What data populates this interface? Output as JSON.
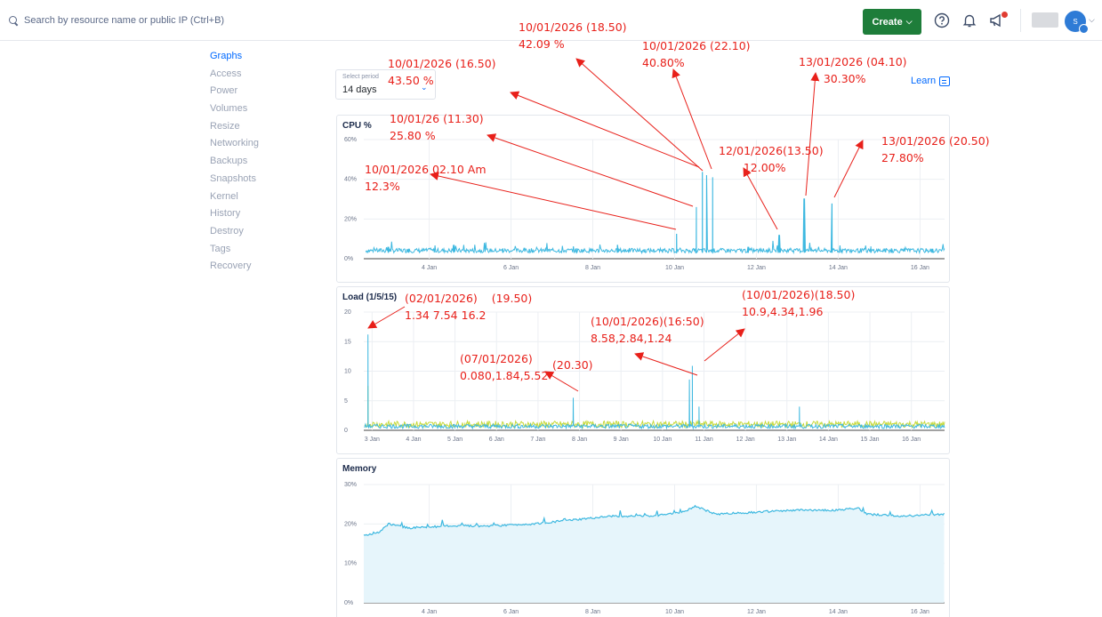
{
  "topbar": {
    "search_placeholder": "Search by resource name or public IP (Ctrl+B)",
    "create_label": "Create",
    "avatar_initial": "S"
  },
  "sidebar": {
    "items": [
      {
        "label": "Graphs",
        "active": true
      },
      {
        "label": "Access"
      },
      {
        "label": "Power"
      },
      {
        "label": "Volumes"
      },
      {
        "label": "Resize"
      },
      {
        "label": "Networking"
      },
      {
        "label": "Backups"
      },
      {
        "label": "Snapshots"
      },
      {
        "label": "Kernel"
      },
      {
        "label": "History"
      },
      {
        "label": "Destroy"
      },
      {
        "label": "Tags"
      },
      {
        "label": "Recovery"
      }
    ]
  },
  "period": {
    "label": "Select period",
    "value": "14 days"
  },
  "learn": {
    "label": "Learn"
  },
  "colors": {
    "accent": "#0069ff",
    "create": "#1e7d3a",
    "cpu_line": "#3db8e0",
    "load1": "#3db8e0",
    "load5": "#c6d93a",
    "mem_fill": "#e6f5fb",
    "annotation": "#e8201a"
  },
  "chart_data": [
    {
      "type": "line",
      "title": "CPU %",
      "y_ticks": [
        "0%",
        "20%",
        "40%",
        "60%"
      ],
      "ylim": [
        0,
        60
      ],
      "x_ticks": [
        "4 Jan",
        "6 Jan",
        "8 Jan",
        "10 Jan",
        "12 Jan",
        "14 Jan",
        "16 Jan"
      ],
      "x_range_days": [
        2.4,
        16.6
      ],
      "baseline": 3,
      "points": [
        [
          3.0,
          6
        ],
        [
          3.5,
          5
        ],
        [
          4.6,
          7
        ],
        [
          5.8,
          5
        ],
        [
          7.6,
          5
        ],
        [
          8.6,
          7
        ],
        [
          9.2,
          4
        ],
        [
          10.05,
          12.3
        ],
        [
          10.53,
          25.8
        ],
        [
          10.68,
          43.5
        ],
        [
          10.78,
          42.09
        ],
        [
          10.93,
          40.8
        ],
        [
          11.5,
          4
        ],
        [
          11.8,
          6
        ],
        [
          12.56,
          12.0
        ],
        [
          13.17,
          30.3
        ],
        [
          13.85,
          27.8
        ],
        [
          14.8,
          6
        ],
        [
          15.3,
          5
        ],
        [
          16.3,
          5
        ]
      ],
      "grid": true
    },
    {
      "type": "line",
      "title": "Load (1/5/15)",
      "y_ticks": [
        "0",
        "5",
        "10",
        "15",
        "20"
      ],
      "ylim": [
        0,
        20
      ],
      "x_ticks": [
        "3 Jan",
        "4 Jan",
        "5 Jan",
        "6 Jan",
        "7 Jan",
        "8 Jan",
        "9 Jan",
        "10 Jan",
        "11 Jan",
        "12 Jan",
        "13 Jan",
        "14 Jan",
        "15 Jan",
        "16 Jan"
      ],
      "x_range_days": [
        2.8,
        16.8
      ],
      "series": [
        {
          "values_baseline": 0.8,
          "spikes": [
            [
              2.9,
              16.2
            ],
            [
              7.85,
              5.5
            ],
            [
              10.65,
              8.58
            ],
            [
              10.72,
              10.9
            ],
            [
              10.88,
              4
            ],
            [
              13.3,
              4
            ]
          ]
        },
        {
          "values_baseline": 1.2,
          "spikes": [
            [
              2.9,
              7.5
            ],
            [
              7.85,
              1.84
            ]
          ]
        }
      ],
      "grid": true
    },
    {
      "type": "area",
      "title": "Memory",
      "y_ticks": [
        "0%",
        "10%",
        "20%",
        "30%"
      ],
      "ylim": [
        0,
        30
      ],
      "x_ticks": [
        "4 Jan",
        "6 Jan",
        "8 Jan",
        "10 Jan",
        "12 Jan",
        "14 Jan",
        "16 Jan"
      ],
      "x_range_days": [
        2.4,
        16.6
      ],
      "points": [
        [
          2.4,
          17
        ],
        [
          2.8,
          18
        ],
        [
          3.0,
          20
        ],
        [
          3.5,
          19
        ],
        [
          4.5,
          19.5
        ],
        [
          5.5,
          19.5
        ],
        [
          6.5,
          20
        ],
        [
          7.5,
          21
        ],
        [
          8.5,
          22
        ],
        [
          9.5,
          22
        ],
        [
          10.2,
          23
        ],
        [
          10.5,
          24.5
        ],
        [
          11.0,
          22.5
        ],
        [
          12.0,
          23
        ],
        [
          13.0,
          23.5
        ],
        [
          14.0,
          23.5
        ],
        [
          14.5,
          24
        ],
        [
          14.7,
          22.5
        ],
        [
          15.5,
          22
        ],
        [
          16.6,
          22.5
        ]
      ],
      "grid": true
    }
  ],
  "annotations": [
    {
      "text": "10/01/2026 (18.50)\n42.09 %"
    },
    {
      "text": "10/01/2026 (22.10)\n40.80%"
    },
    {
      "text": "10/01/2026 (16.50)\n43.50 %"
    },
    {
      "text": "13/01/2026 (04.10)\n       30.30%"
    },
    {
      "text": "10/01/26 (11.30)\n25.80 %"
    },
    {
      "text": "12/01/2026(13.50)\n       12.00%"
    },
    {
      "text": "13/01/2026 (20.50)\n27.80%"
    },
    {
      "text": "10/01/2026 02.10 Am\n12.3%"
    },
    {
      "text": "(02/01/2026)    (19.50)\n1.34 7.54 16.2"
    },
    {
      "text": "(10/01/2026)(18.50)\n10.9,4.34,1.96"
    },
    {
      "text": "(10/01/2026)(16:50)\n8.58,2.84,1.24"
    },
    {
      "text": "(07/01/2026)\n0.080,1.84,5.52"
    },
    {
      "text": "(20.30)"
    }
  ]
}
